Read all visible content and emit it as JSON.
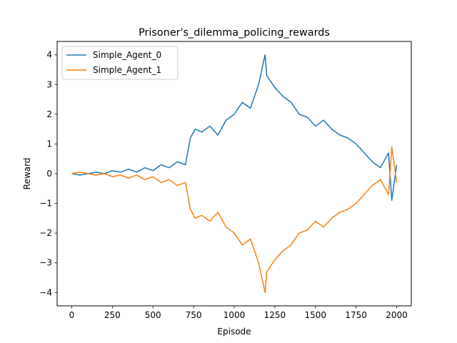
{
  "chart_data": {
    "type": "line",
    "title": "Prisoner's_dilemma_policing_rewards",
    "xlabel": "Episode",
    "ylabel": "Reward",
    "xlim": [
      -90,
      2090
    ],
    "ylim": [
      -4.45,
      4.45
    ],
    "xticks": [
      0,
      250,
      500,
      750,
      1000,
      1250,
      1500,
      1750,
      2000
    ],
    "yticks": [
      -4,
      -3,
      -2,
      -1,
      0,
      1,
      2,
      3,
      4
    ],
    "xtick_labels": [
      "0",
      "250",
      "500",
      "750",
      "1000",
      "1250",
      "1500",
      "1750",
      "2000"
    ],
    "ytick_labels": [
      "−4",
      "−3",
      "−2",
      "−1",
      "0",
      "1",
      "2",
      "3",
      "4"
    ],
    "grid": false,
    "legend": "top-left",
    "series": [
      {
        "name": "Simple_Agent_0",
        "color": "#1f77b4",
        "x": [
          0,
          50,
          100,
          150,
          200,
          250,
          300,
          350,
          400,
          450,
          500,
          550,
          600,
          650,
          700,
          730,
          760,
          800,
          850,
          900,
          950,
          1000,
          1050,
          1100,
          1150,
          1190,
          1200,
          1250,
          1300,
          1350,
          1400,
          1450,
          1500,
          1550,
          1600,
          1650,
          1700,
          1750,
          1800,
          1850,
          1900,
          1950,
          1970,
          2000
        ],
        "values": [
          0.0,
          -0.05,
          0.0,
          0.05,
          0.0,
          0.1,
          0.05,
          0.15,
          0.05,
          0.2,
          0.1,
          0.3,
          0.2,
          0.4,
          0.3,
          1.2,
          1.5,
          1.4,
          1.6,
          1.3,
          1.8,
          2.0,
          2.4,
          2.2,
          3.0,
          4.0,
          3.3,
          2.9,
          2.6,
          2.4,
          2.0,
          1.9,
          1.6,
          1.8,
          1.5,
          1.3,
          1.2,
          1.0,
          0.7,
          0.4,
          0.2,
          0.7,
          -0.9,
          0.3
        ]
      },
      {
        "name": "Simple_Agent_1",
        "color": "#ff7f0e",
        "x": [
          0,
          50,
          100,
          150,
          200,
          250,
          300,
          350,
          400,
          450,
          500,
          550,
          600,
          650,
          700,
          730,
          760,
          800,
          850,
          900,
          950,
          1000,
          1050,
          1100,
          1150,
          1190,
          1200,
          1250,
          1300,
          1350,
          1400,
          1450,
          1500,
          1550,
          1600,
          1650,
          1700,
          1750,
          1800,
          1850,
          1900,
          1950,
          1970,
          2000
        ],
        "values": [
          0.0,
          0.05,
          0.0,
          -0.05,
          0.0,
          -0.1,
          -0.05,
          -0.15,
          -0.05,
          -0.2,
          -0.1,
          -0.3,
          -0.2,
          -0.4,
          -0.3,
          -1.2,
          -1.5,
          -1.4,
          -1.6,
          -1.3,
          -1.8,
          -2.0,
          -2.4,
          -2.2,
          -3.0,
          -4.0,
          -3.3,
          -2.9,
          -2.6,
          -2.4,
          -2.0,
          -1.9,
          -1.6,
          -1.8,
          -1.5,
          -1.3,
          -1.2,
          -1.0,
          -0.7,
          -0.4,
          -0.2,
          -0.7,
          0.9,
          -0.3
        ]
      }
    ]
  }
}
